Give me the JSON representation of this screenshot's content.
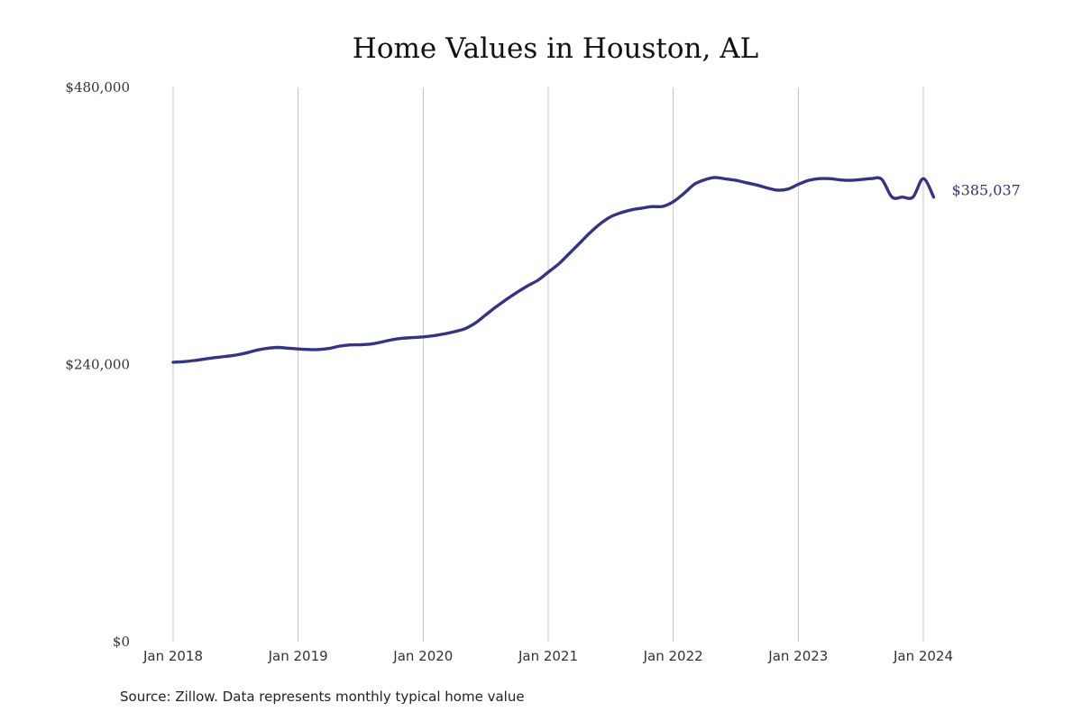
{
  "chart_data": {
    "type": "line",
    "title": "Home Values in Houston, AL",
    "source": "Source: Zillow. Data represents monthly typical home value",
    "ylim": [
      0,
      480000
    ],
    "y_ticks": [
      {
        "value": 0,
        "label": "$0"
      },
      {
        "value": 240000,
        "label": "$240,000"
      },
      {
        "value": 480000,
        "label": "$480,000"
      }
    ],
    "xlim": [
      2018.0,
      2024.167
    ],
    "x_ticks": [
      {
        "value": 2018,
        "label": "Jan 2018"
      },
      {
        "value": 2019,
        "label": "Jan 2019"
      },
      {
        "value": 2020,
        "label": "Jan 2020"
      },
      {
        "value": 2021,
        "label": "Jan 2021"
      },
      {
        "value": 2022,
        "label": "Jan 2022"
      },
      {
        "value": 2023,
        "label": "Jan 2023"
      },
      {
        "value": 2024,
        "label": "Jan 2024"
      }
    ],
    "grid": "vertical",
    "line_color": "#33338a",
    "end_label": "$385,037",
    "series": [
      {
        "name": "Typical home value",
        "x": [
          2018.0,
          2018.083,
          2018.167,
          2018.25,
          2018.333,
          2018.417,
          2018.5,
          2018.583,
          2018.667,
          2018.75,
          2018.833,
          2018.917,
          2019.0,
          2019.083,
          2019.167,
          2019.25,
          2019.333,
          2019.417,
          2019.5,
          2019.583,
          2019.667,
          2019.75,
          2019.833,
          2019.917,
          2020.0,
          2020.083,
          2020.167,
          2020.25,
          2020.333,
          2020.417,
          2020.5,
          2020.583,
          2020.667,
          2020.75,
          2020.833,
          2020.917,
          2021.0,
          2021.083,
          2021.167,
          2021.25,
          2021.333,
          2021.417,
          2021.5,
          2021.583,
          2021.667,
          2021.75,
          2021.833,
          2021.917,
          2022.0,
          2022.083,
          2022.167,
          2022.25,
          2022.333,
          2022.417,
          2022.5,
          2022.583,
          2022.667,
          2022.75,
          2022.833,
          2022.917,
          2023.0,
          2023.083,
          2023.167,
          2023.25,
          2023.333,
          2023.417,
          2023.5,
          2023.583,
          2023.667,
          2023.75,
          2023.833,
          2023.917,
          2024.0,
          2024.083
        ],
        "values": [
          242000,
          242500,
          243500,
          244800,
          246000,
          247000,
          248200,
          250000,
          252400,
          254000,
          254800,
          254200,
          253500,
          253000,
          253000,
          254000,
          256000,
          257000,
          257200,
          257800,
          259500,
          261500,
          262800,
          263300,
          264000,
          265000,
          266500,
          268500,
          271000,
          276000,
          283000,
          290000,
          296500,
          302500,
          308000,
          313000,
          320000,
          327000,
          336000,
          345000,
          354000,
          362000,
          368000,
          371500,
          374000,
          375500,
          376800,
          377000,
          381000,
          388000,
          396000,
          400000,
          402000,
          400800,
          399500,
          397500,
          395500,
          393000,
          391000,
          392000,
          396000,
          399500,
          401000,
          401000,
          400000,
          399500,
          400200,
          401000,
          400500,
          385037,
          385037,
          385037,
          401000,
          385037
        ]
      }
    ]
  }
}
